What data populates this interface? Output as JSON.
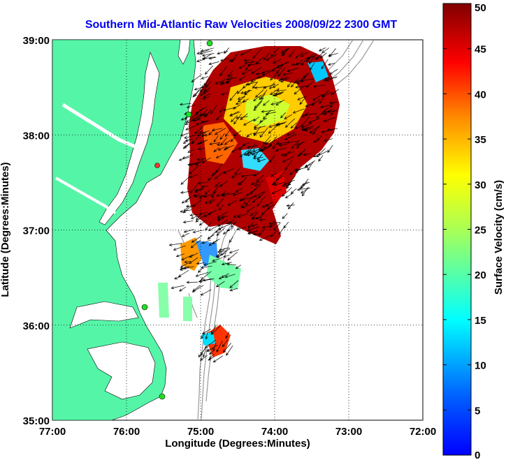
{
  "map": {
    "title": "Southern Mid-Atlantic Raw Velocities 2008/09/22 2300 GMT",
    "xlabel": "Longitude (Degrees:Minutes)",
    "ylabel": "Latitude (Degrees:Minutes)",
    "x_ticks": [
      {
        "value": -77,
        "label": "77:00"
      },
      {
        "value": -76,
        "label": "76:00"
      },
      {
        "value": -75,
        "label": "75:00"
      },
      {
        "value": -74,
        "label": "74:00"
      },
      {
        "value": -73,
        "label": "73:00"
      },
      {
        "value": -72,
        "label": "72:00"
      }
    ],
    "y_ticks": [
      {
        "value": 39,
        "label": "39:00"
      },
      {
        "value": 38,
        "label": "38:00"
      },
      {
        "value": 37,
        "label": "37:00"
      },
      {
        "value": 36,
        "label": "36:00"
      },
      {
        "value": 35,
        "label": "35:00"
      }
    ],
    "xlim": [
      -77,
      -72
    ],
    "ylim": [
      35,
      39
    ],
    "grid": true,
    "colors": {
      "land": "#55f5a8",
      "title": "#0000ee",
      "stations": "#22dd22",
      "bathymetry": "#999999"
    }
  },
  "colorbar": {
    "label": "Surface Velocity (cm/s)",
    "range": [
      0,
      50
    ],
    "ticks": [
      {
        "value": 0,
        "label": "0"
      },
      {
        "value": 5,
        "label": "5"
      },
      {
        "value": 10,
        "label": "10"
      },
      {
        "value": 15,
        "label": "15"
      },
      {
        "value": 20,
        "label": "20"
      },
      {
        "value": 25,
        "label": "25"
      },
      {
        "value": 30,
        "label": "30"
      },
      {
        "value": 35,
        "label": "35"
      },
      {
        "value": 40,
        "label": "40"
      },
      {
        "value": 45,
        "label": "45"
      },
      {
        "value": 50,
        "label": "50"
      }
    ],
    "colormap": "jet"
  }
}
